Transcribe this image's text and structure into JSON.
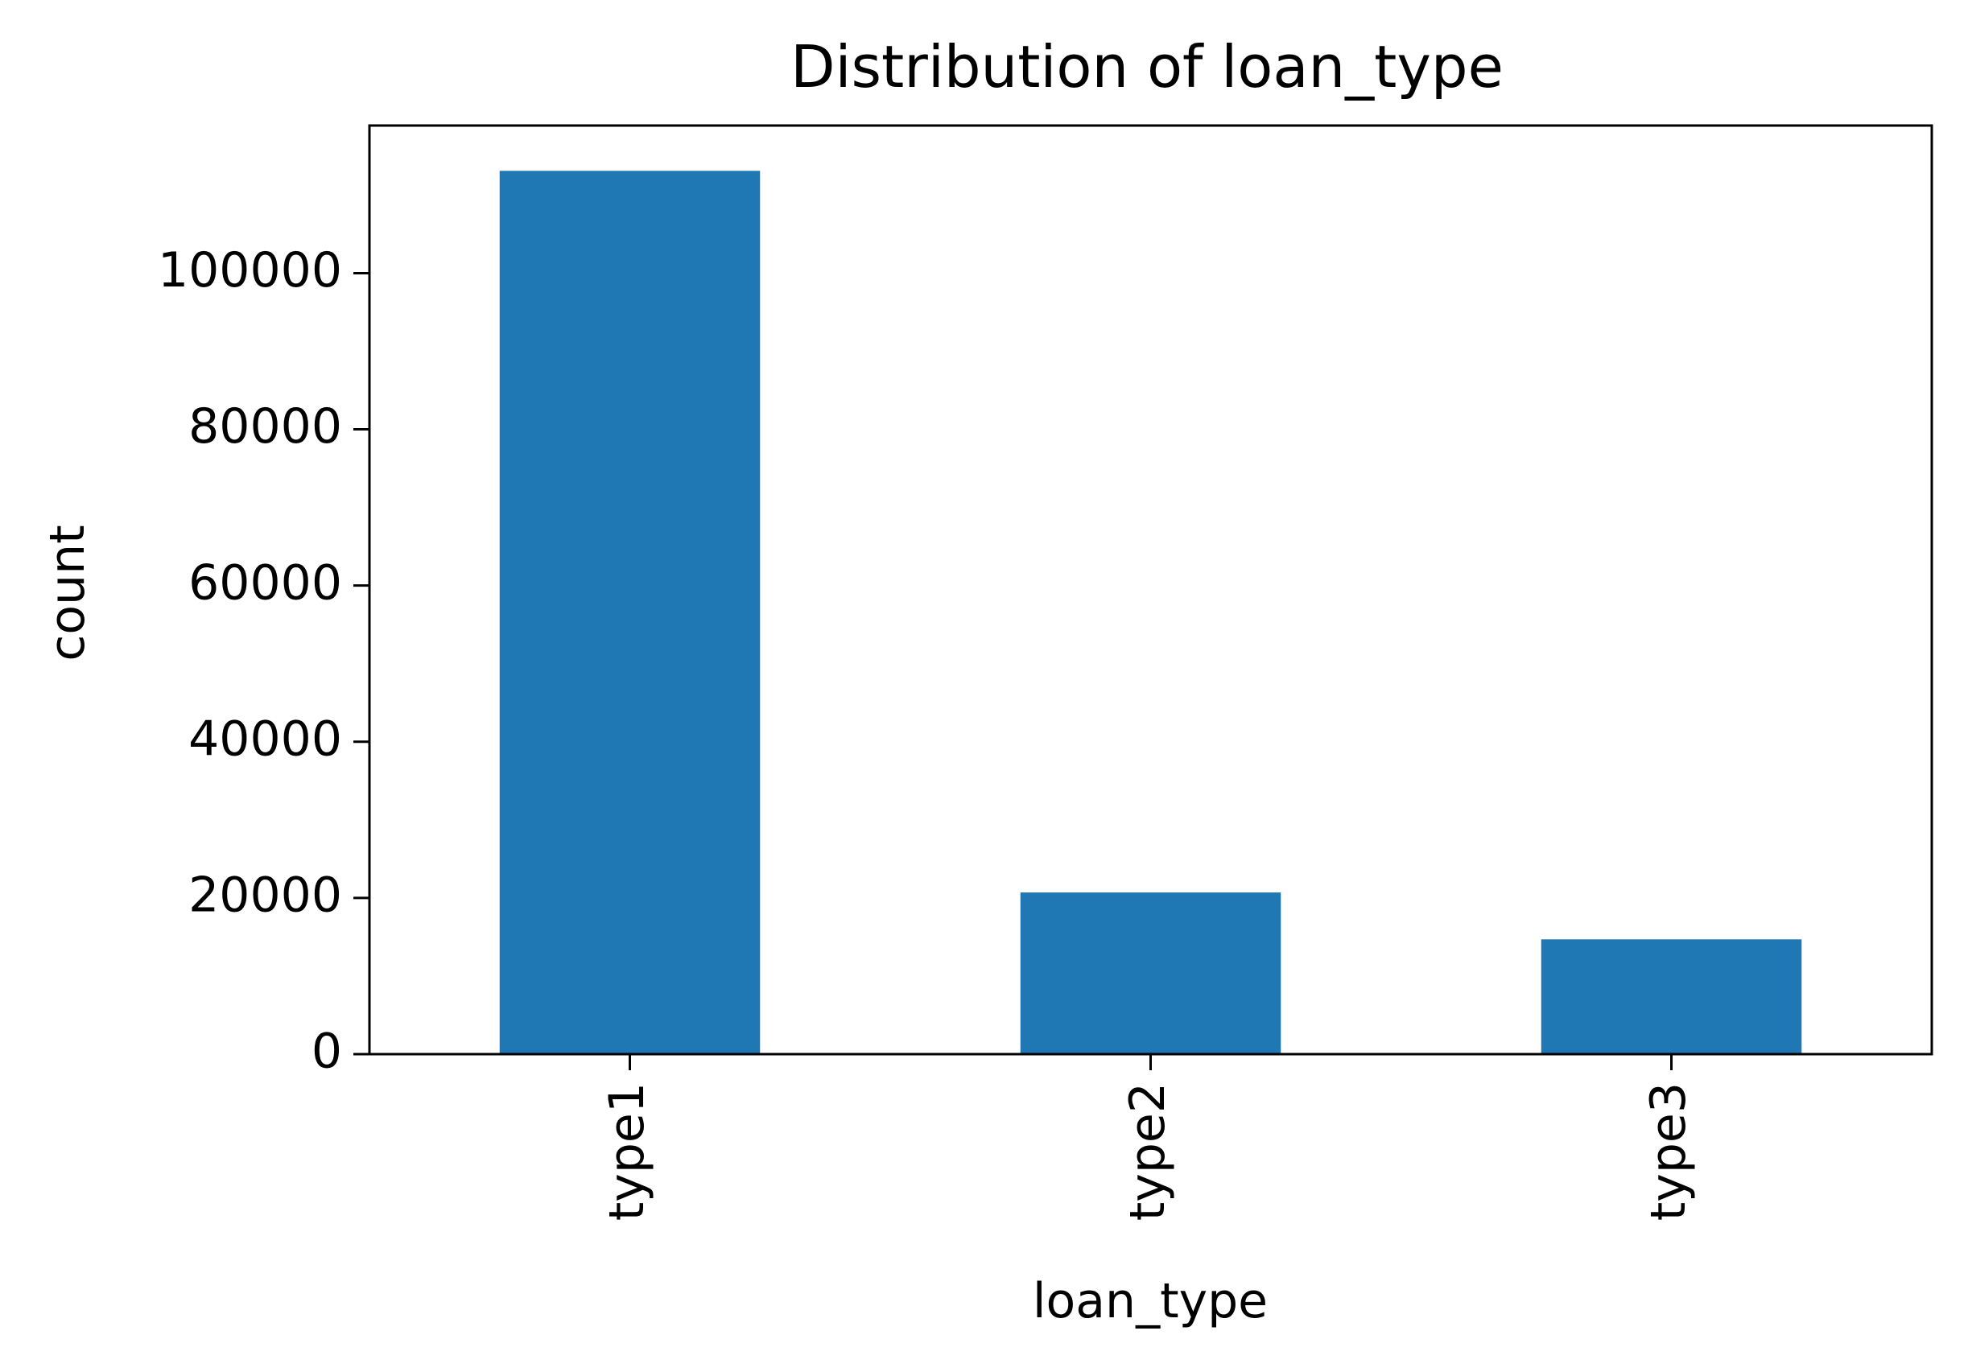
{
  "chart_data": {
    "type": "bar",
    "title": "Distribution of loan_type",
    "xlabel": "loan_type",
    "ylabel": "count",
    "categories": [
      "type1",
      "type2",
      "type3"
    ],
    "values": [
      113100,
      20700,
      14700
    ],
    "ylim": [
      0,
      118900
    ],
    "yticks": [
      0,
      20000,
      40000,
      60000,
      80000,
      100000
    ],
    "ytick_labels": [
      "0",
      "20000",
      "40000",
      "60000",
      "80000",
      "100000"
    ],
    "bar_color": "#1f77b4",
    "grid": false,
    "legend": "none",
    "xtick_rotation": "vertical"
  }
}
